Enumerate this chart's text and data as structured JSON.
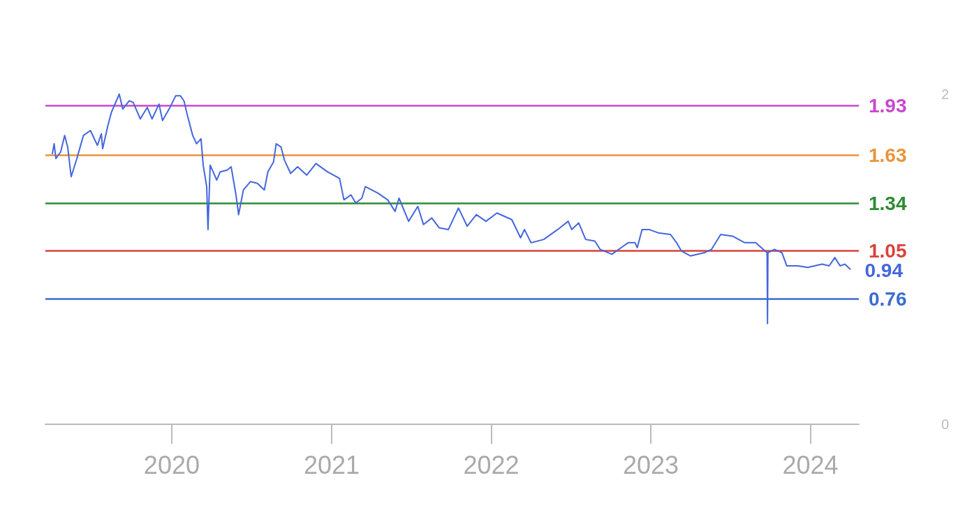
{
  "chart_data": {
    "type": "line",
    "x": [
      "2019-04-03",
      "2019-04-07",
      "2019-04-11",
      "2019-04-22",
      "2019-05-01",
      "2019-05-08",
      "2019-05-16",
      "2019-05-29",
      "2019-06-13",
      "2019-06-29",
      "2019-07-15",
      "2019-07-24",
      "2019-07-27",
      "2019-08-08",
      "2019-08-16",
      "2019-09-03",
      "2019-09-11",
      "2019-09-26",
      "2019-10-05",
      "2019-10-21",
      "2019-11-06",
      "2019-11-17",
      "2019-12-03",
      "2019-12-11",
      "2019-12-28",
      "2020-01-10",
      "2020-01-21",
      "2020-01-29",
      "2020-02-07",
      "2020-02-18",
      "2020-02-27",
      "2020-03-08",
      "2020-03-13",
      "2020-03-21",
      "2020-03-24",
      "2020-03-29",
      "2020-04-13",
      "2020-04-21",
      "2020-05-07",
      "2020-05-16",
      "2020-05-27",
      "2020-06-02",
      "2020-06-13",
      "2020-06-29",
      "2020-07-15",
      "2020-07-31",
      "2020-08-08",
      "2020-08-21",
      "2020-08-27",
      "2020-09-07",
      "2020-09-15",
      "2020-09-29",
      "2020-10-15",
      "2020-11-05",
      "2020-11-26",
      "2020-12-22",
      "2021-01-19",
      "2021-01-29",
      "2021-02-14",
      "2021-02-25",
      "2021-03-11",
      "2021-03-19",
      "2021-04-17",
      "2021-05-09",
      "2021-05-26",
      "2021-06-04",
      "2021-06-26",
      "2021-07-17",
      "2021-07-30",
      "2021-08-18",
      "2021-09-04",
      "2021-09-25",
      "2021-10-18",
      "2021-11-07",
      "2021-11-28",
      "2021-12-20",
      "2022-01-14",
      "2022-02-17",
      "2022-03-09",
      "2022-03-18",
      "2022-04-02",
      "2022-05-01",
      "2022-06-02",
      "2022-06-26",
      "2022-07-04",
      "2022-07-20",
      "2022-08-05",
      "2022-08-26",
      "2022-09-07",
      "2022-10-04",
      "2022-10-25",
      "2022-11-10",
      "2022-11-26",
      "2022-12-01",
      "2022-12-12",
      "2022-12-28",
      "2023-01-18",
      "2023-02-15",
      "2023-03-01",
      "2023-03-12",
      "2023-04-02",
      "2023-05-04",
      "2023-05-20",
      "2023-06-10",
      "2023-07-07",
      "2023-08-04",
      "2023-08-29",
      "2023-09-15",
      "2023-09-24",
      "2023-09-25",
      "2023-09-26",
      "2023-10-11",
      "2023-10-28",
      "2023-11-08",
      "2023-12-04",
      "2023-12-26",
      "2024-01-28",
      "2024-02-13",
      "2024-02-26",
      "2024-03-09",
      "2024-03-20",
      "2024-04-01"
    ],
    "series": [
      {
        "color": "#4466dd",
        "values": [
          1.64,
          1.7,
          1.61,
          1.65,
          1.75,
          1.68,
          1.5,
          1.61,
          1.75,
          1.78,
          1.69,
          1.76,
          1.67,
          1.81,
          1.89,
          2.0,
          1.91,
          1.96,
          1.95,
          1.85,
          1.92,
          1.85,
          1.94,
          1.84,
          1.92,
          1.99,
          1.99,
          1.96,
          1.86,
          1.75,
          1.7,
          1.73,
          1.57,
          1.44,
          1.18,
          1.57,
          1.48,
          1.53,
          1.54,
          1.56,
          1.39,
          1.27,
          1.42,
          1.47,
          1.46,
          1.42,
          1.53,
          1.59,
          1.7,
          1.68,
          1.6,
          1.52,
          1.56,
          1.51,
          1.58,
          1.53,
          1.49,
          1.36,
          1.39,
          1.34,
          1.37,
          1.44,
          1.4,
          1.36,
          1.29,
          1.37,
          1.23,
          1.32,
          1.21,
          1.25,
          1.19,
          1.18,
          1.31,
          1.2,
          1.27,
          1.23,
          1.28,
          1.24,
          1.13,
          1.18,
          1.1,
          1.12,
          1.18,
          1.23,
          1.18,
          1.22,
          1.12,
          1.11,
          1.06,
          1.03,
          1.07,
          1.1,
          1.1,
          1.07,
          1.18,
          1.18,
          1.16,
          1.15,
          1.1,
          1.05,
          1.02,
          1.04,
          1.06,
          1.15,
          1.14,
          1.1,
          1.1,
          1.06,
          1.04,
          0.61,
          1.04,
          1.06,
          1.04,
          0.96,
          0.96,
          0.95,
          0.97,
          0.96,
          1.01,
          0.96,
          0.97,
          0.94
        ]
      }
    ],
    "xlim": [
      "2019-03-18",
      "2024-04-21"
    ],
    "xticks": [
      {
        "value": "2020-01-01",
        "label": "2020"
      },
      {
        "value": "2021-01-01",
        "label": "2021"
      },
      {
        "value": "2022-01-01",
        "label": "2022"
      },
      {
        "value": "2023-01-01",
        "label": "2023"
      },
      {
        "value": "2024-01-01",
        "label": "2024"
      }
    ],
    "ylim": [
      0,
      2
    ],
    "yticks": [
      0,
      2
    ],
    "grid": false,
    "marker": "none",
    "line_style": "solid",
    "ref_lines": [
      {
        "axis": "y",
        "value": 1.93,
        "label": "1.93",
        "color": "#c846d2"
      },
      {
        "axis": "y",
        "value": 1.63,
        "label": "1.63",
        "color": "#e8953a"
      },
      {
        "axis": "y",
        "value": 1.34,
        "label": "1.34",
        "color": "#2e8b34"
      },
      {
        "axis": "y",
        "value": 1.05,
        "label": "1.05",
        "color": "#d8423b"
      },
      {
        "axis": "y",
        "value": 0.76,
        "label": "0.76",
        "color": "#3b6cd0"
      }
    ],
    "annotations": [
      {
        "text": "0.94",
        "x": "2024-04-01",
        "y": 0.94
      }
    ]
  }
}
